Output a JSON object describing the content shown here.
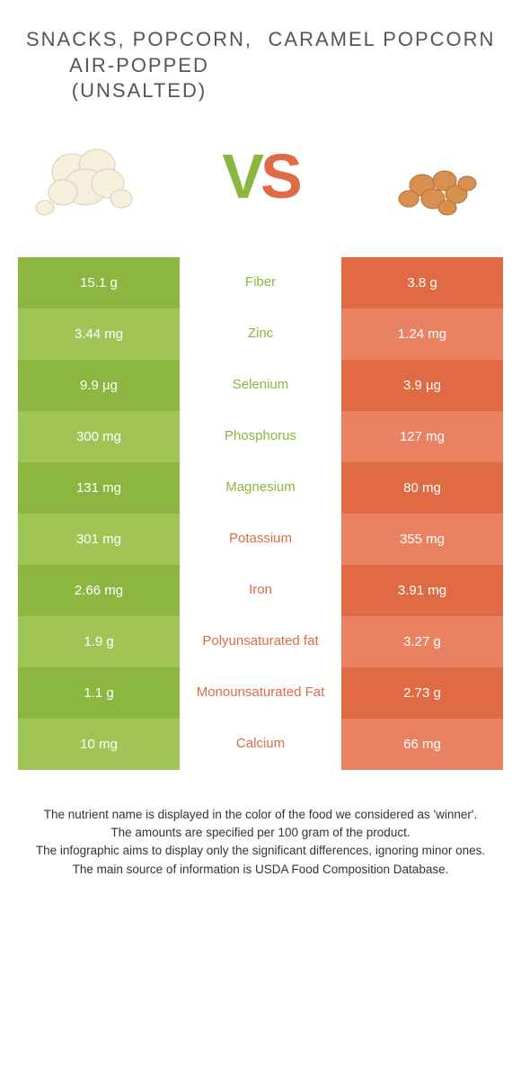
{
  "colors": {
    "left_primary": "#8bb63f",
    "left_alt": "#a0c456",
    "right_primary": "#e06a44",
    "right_alt": "#e88263",
    "center_left_text": "#8bb63f",
    "center_right_text": "#e06a44",
    "title_text": "#555555",
    "footer_text": "#333333",
    "background": "#ffffff"
  },
  "header": {
    "left_title": "Snacks, popcorn, air-popped (unsalted)",
    "right_title": "Caramel popcorn",
    "vs_v": "V",
    "vs_s": "S"
  },
  "table": {
    "rows": [
      {
        "left": "15.1 g",
        "label": "Fiber",
        "right": "3.8 g",
        "winner": "left"
      },
      {
        "left": "3.44 mg",
        "label": "Zinc",
        "right": "1.24 mg",
        "winner": "left"
      },
      {
        "left": "9.9 µg",
        "label": "Selenium",
        "right": "3.9 µg",
        "winner": "left"
      },
      {
        "left": "300 mg",
        "label": "Phosphorus",
        "right": "127 mg",
        "winner": "left"
      },
      {
        "left": "131 mg",
        "label": "Magnesium",
        "right": "80 mg",
        "winner": "left"
      },
      {
        "left": "301 mg",
        "label": "Potassium",
        "right": "355 mg",
        "winner": "right"
      },
      {
        "left": "2.66 mg",
        "label": "Iron",
        "right": "3.91 mg",
        "winner": "right"
      },
      {
        "left": "1.9 g",
        "label": "Polyunsaturated fat",
        "right": "3.27 g",
        "winner": "right"
      },
      {
        "left": "1.1 g",
        "label": "Monounsaturated Fat",
        "right": "2.73 g",
        "winner": "right"
      },
      {
        "left": "10 mg",
        "label": "Calcium",
        "right": "66 mg",
        "winner": "right"
      }
    ]
  },
  "footer": {
    "line1": "The nutrient name is displayed in the color of the food we considered as 'winner'.",
    "line2": "The amounts are specified per 100 gram of the product.",
    "line3": "The infographic aims to display only the significant differences, ignoring minor ones.",
    "line4": "The main source of information is USDA Food Composition Database."
  }
}
